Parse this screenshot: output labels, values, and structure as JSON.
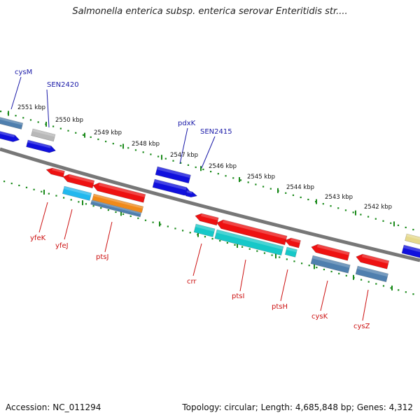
{
  "title": "Salmonella enterica subsp. enterica serovar Enteritidis str....",
  "footer": {
    "accession": "Accession: NC_011294",
    "topology": "Topology: circular; Length: 4,685,848 bp; Genes: 4,312"
  },
  "colors": {
    "backbone": "#777777",
    "tick": "#1a8a1a",
    "top_label": "#1a1aa8",
    "bottom_label": "#cc1111"
  },
  "ruler": {
    "labels": [
      "2551 kbp",
      "2550 kbp",
      "2549 kbp",
      "2548 kbp",
      "2547 kbp",
      "2546 kbp",
      "2545 kbp",
      "2544 kbp",
      "2543 kbp",
      "2542 kbp"
    ]
  },
  "genes_top": [
    "cysM",
    "SEN2420",
    "pdxK",
    "SEN2415"
  ],
  "genes_bottom": [
    "yfeK",
    "yfeJ",
    "ptsJ",
    "crr",
    "ptsI",
    "ptsH",
    "cysK",
    "cysZ"
  ]
}
